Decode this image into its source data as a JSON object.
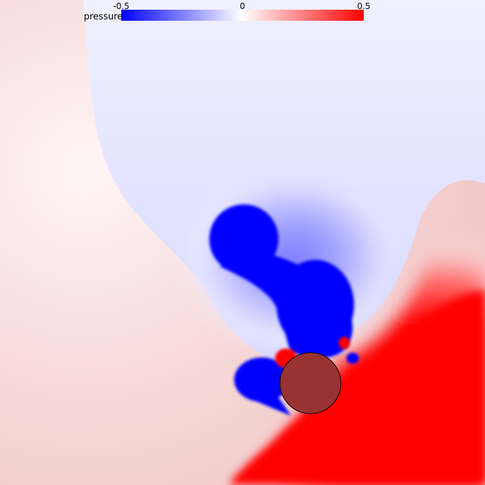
{
  "colorbar": {
    "title": "pressure",
    "min_label": "-0.5",
    "mid_label": "0",
    "max_label": "0.5",
    "min_value": -0.5,
    "max_value": 0.5,
    "colors": [
      "#0000ff",
      "#ffffff",
      "#ff0000"
    ]
  },
  "obstacle": {
    "fill": "#993333",
    "stroke": "#000000"
  }
}
